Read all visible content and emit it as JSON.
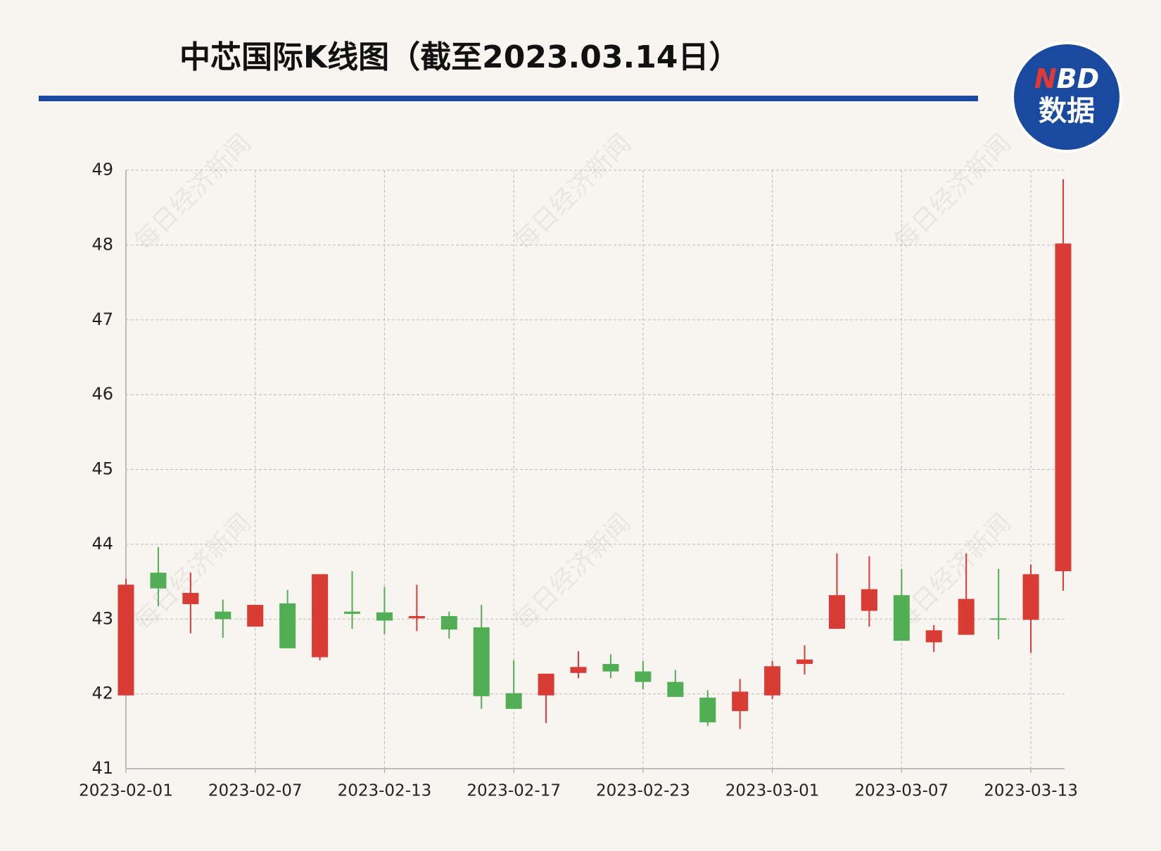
{
  "chart_data": {
    "type": "candlestick",
    "title": "中芯国际K线图（截至2023.03.14日）",
    "categories": [
      "2023-02-01",
      null,
      null,
      null,
      "2023-02-07",
      null,
      null,
      null,
      "2023-02-13",
      null,
      null,
      null,
      "2023-02-17",
      null,
      null,
      null,
      "2023-02-23",
      null,
      null,
      null,
      "2023-03-01",
      null,
      null,
      null,
      "2023-03-07",
      null,
      null,
      null,
      "2023-03-13",
      null
    ],
    "open": [
      41.98,
      43.62,
      43.2,
      43.1,
      42.9,
      43.21,
      42.49,
      43.1,
      43.09,
      43.01,
      43.04,
      42.89,
      42.01,
      41.98,
      42.28,
      42.4,
      42.3,
      42.16,
      41.95,
      41.77,
      41.98,
      42.4,
      42.87,
      43.11,
      43.32,
      42.69,
      42.79,
      43.01,
      42.99,
      43.64
    ],
    "high": [
      43.54,
      43.96,
      43.62,
      43.26,
      43.19,
      43.39,
      43.6,
      43.64,
      43.43,
      43.46,
      43.1,
      43.19,
      42.45,
      42.27,
      42.57,
      42.53,
      42.44,
      42.32,
      42.05,
      42.2,
      42.44,
      42.65,
      43.88,
      43.84,
      43.67,
      42.92,
      43.88,
      43.67,
      43.73,
      48.88
    ],
    "low": [
      41.98,
      43.17,
      42.81,
      42.75,
      42.9,
      42.61,
      42.45,
      42.87,
      42.8,
      42.84,
      42.74,
      41.8,
      41.8,
      41.61,
      42.21,
      42.21,
      42.06,
      41.96,
      41.57,
      41.53,
      41.93,
      42.26,
      42.87,
      42.9,
      42.71,
      42.56,
      42.79,
      42.73,
      42.55,
      43.38
    ],
    "close": [
      43.46,
      43.41,
      43.35,
      43.0,
      43.19,
      42.61,
      43.6,
      43.07,
      42.98,
      43.04,
      42.86,
      41.97,
      41.8,
      42.27,
      42.36,
      42.3,
      42.16,
      41.96,
      41.62,
      42.03,
      42.37,
      42.46,
      43.32,
      43.4,
      42.71,
      42.85,
      43.27,
      43.0,
      43.6,
      48.02
    ],
    "up_color": "#d93c35",
    "down_color": "#52ae54",
    "ylim": [
      41,
      49
    ],
    "yticks": [
      41,
      42,
      43,
      44,
      45,
      46,
      47,
      48,
      49
    ],
    "grid": true
  },
  "logo": {
    "n": "N",
    "bd": "BD",
    "label": "数据"
  },
  "watermark": "每日经济新闻"
}
